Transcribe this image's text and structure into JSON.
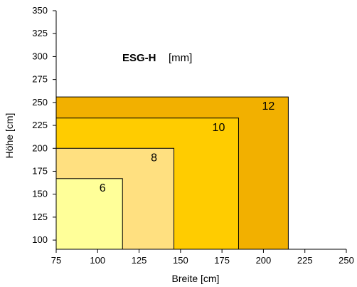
{
  "chart_data": {
    "type": "area",
    "title_bold": "ESG-H",
    "title_unit": "[mm]",
    "xlabel": "Breite [cm]",
    "ylabel": "Höhe [cm]",
    "xlim": [
      75,
      250
    ],
    "ylim": [
      90,
      350
    ],
    "x_ticks": [
      75,
      100,
      125,
      150,
      175,
      200,
      225,
      250
    ],
    "y_ticks": [
      100,
      125,
      150,
      175,
      200,
      225,
      250,
      275,
      300,
      325,
      350
    ],
    "grid": false,
    "legend": "none",
    "series": [
      {
        "name": "12",
        "width": 215,
        "height": 256,
        "color": "#F2B000"
      },
      {
        "name": "10",
        "width": 185,
        "height": 233,
        "color": "#FFCC00"
      },
      {
        "name": "8",
        "width": 146,
        "height": 200,
        "color": "#FFE080"
      },
      {
        "name": "6",
        "width": 115,
        "height": 167,
        "color": "#FFFF99"
      }
    ]
  }
}
